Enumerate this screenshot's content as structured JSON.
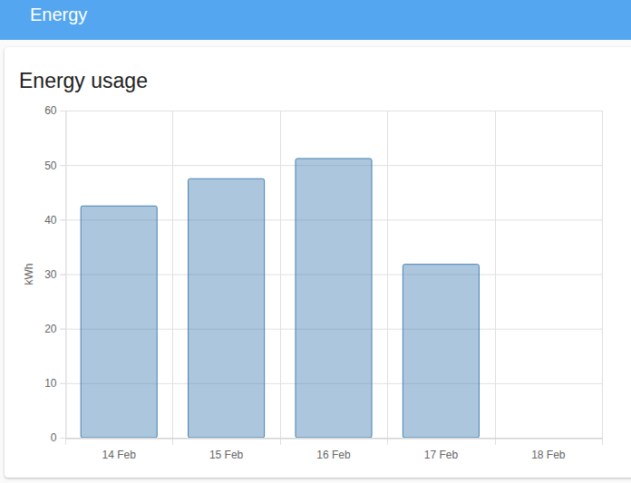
{
  "header": {
    "title": "Energy"
  },
  "chart_data": {
    "type": "bar",
    "title": "Energy usage",
    "y_label": "kWh",
    "categories": [
      "14 Feb",
      "15 Feb",
      "16 Feb",
      "17 Feb",
      "18 Feb"
    ],
    "values": [
      42.5,
      47.5,
      51.2,
      31.8,
      null
    ],
    "color": "#4682b4",
    "ylim": [
      0,
      60
    ],
    "yticks": [
      0,
      10,
      20,
      30,
      40,
      50,
      60
    ],
    "grid": true
  }
}
